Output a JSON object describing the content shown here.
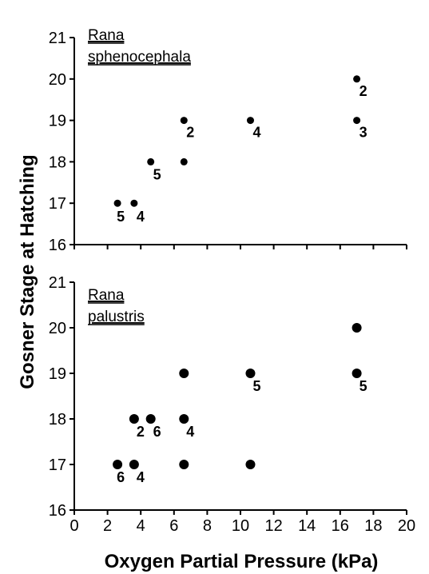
{
  "chart_data": [
    {
      "type": "scatter",
      "panel": "top",
      "title_lines": [
        "Rana",
        "sphenocephala"
      ],
      "ylabel": "Gosner Stage at Hatching",
      "xlabel": "Oxygen Partial Pressure (kPa)",
      "xlim": [
        0,
        20
      ],
      "ylim": [
        16,
        21
      ],
      "x_ticks": [
        "0",
        "2",
        "4",
        "6",
        "8",
        "10",
        "12",
        "14",
        "16",
        "18",
        "20"
      ],
      "y_ticks": [
        "16",
        "17",
        "18",
        "19",
        "20",
        "21"
      ],
      "grid": false,
      "points": [
        {
          "x": 2.6,
          "y": 17,
          "label": "5"
        },
        {
          "x": 3.6,
          "y": 17,
          "label": "4"
        },
        {
          "x": 4.6,
          "y": 18,
          "label": "5"
        },
        {
          "x": 6.6,
          "y": 19,
          "label": "2"
        },
        {
          "x": 6.6,
          "y": 18,
          "label": ""
        },
        {
          "x": 10.6,
          "y": 19,
          "label": "4"
        },
        {
          "x": 17.0,
          "y": 20,
          "label": "2"
        },
        {
          "x": 17.0,
          "y": 19,
          "label": "3"
        }
      ]
    },
    {
      "type": "scatter",
      "panel": "bottom",
      "title_lines": [
        "Rana",
        "palustris"
      ],
      "ylabel": "Gosner Stage at Hatching",
      "xlabel": "Oxygen Partial Pressure (kPa)",
      "xlim": [
        0,
        20
      ],
      "ylim": [
        16,
        21
      ],
      "x_ticks": [
        "0",
        "2",
        "4",
        "6",
        "8",
        "10",
        "12",
        "14",
        "16",
        "18",
        "20"
      ],
      "y_ticks": [
        "16",
        "17",
        "18",
        "19",
        "20",
        "21"
      ],
      "grid": false,
      "points": [
        {
          "x": 2.6,
          "y": 17,
          "label": "6"
        },
        {
          "x": 3.6,
          "y": 17,
          "label": "4"
        },
        {
          "x": 3.6,
          "y": 18,
          "label": "2"
        },
        {
          "x": 4.6,
          "y": 18,
          "label": "6"
        },
        {
          "x": 6.6,
          "y": 18,
          "label": "4"
        },
        {
          "x": 6.6,
          "y": 19,
          "label": ""
        },
        {
          "x": 6.6,
          "y": 17,
          "label": ""
        },
        {
          "x": 10.6,
          "y": 19,
          "label": "5"
        },
        {
          "x": 10.6,
          "y": 17,
          "label": ""
        },
        {
          "x": 17.0,
          "y": 20,
          "label": ""
        },
        {
          "x": 17.0,
          "y": 19,
          "label": "5"
        }
      ]
    }
  ],
  "shared": {
    "ylabel": "Gosner Stage at Hatching",
    "xlabel": "Oxygen Partial Pressure (kPa)"
  }
}
